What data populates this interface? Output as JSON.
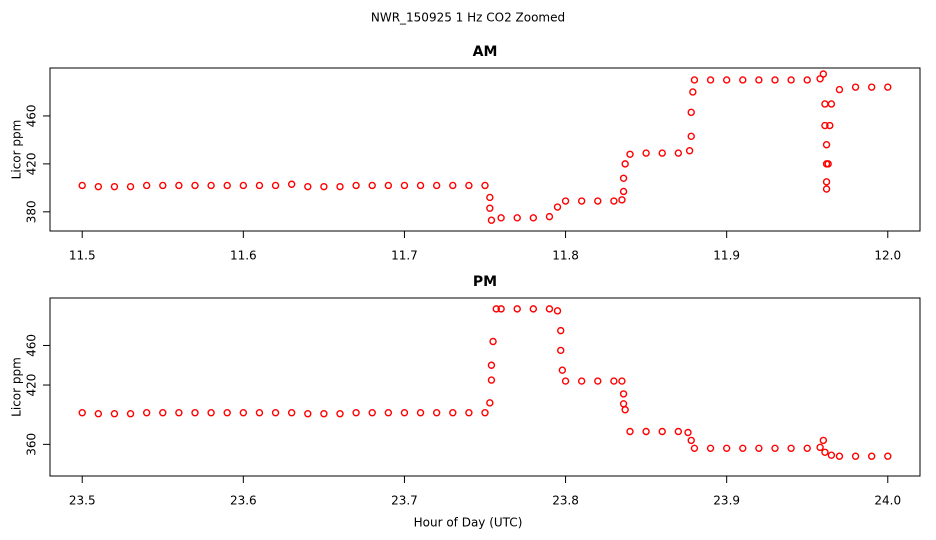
{
  "title": "NWR_150925  1 Hz CO2 Zoomed",
  "xlabel": "Hour of Day (UTC)",
  "chart_data": [
    {
      "type": "scatter",
      "title": "AM",
      "ylabel": "Licor ppm",
      "color": "#ff0000",
      "xlim": [
        11.48,
        12.02
      ],
      "ylim": [
        364,
        500
      ],
      "xticks": [
        11.5,
        11.6,
        11.7,
        11.8,
        11.9,
        {
          "value": 12,
          "label": "12.0"
        }
      ],
      "yticks": [
        380,
        420,
        460
      ],
      "x": [
        11.5,
        11.51,
        11.52,
        11.53,
        11.54,
        11.55,
        11.56,
        11.57,
        11.58,
        11.59,
        11.6,
        11.61,
        11.62,
        11.63,
        11.64,
        11.65,
        11.66,
        11.67,
        11.68,
        11.69,
        11.7,
        11.71,
        11.72,
        11.73,
        11.74,
        11.75,
        11.753,
        11.753,
        11.754,
        11.76,
        11.77,
        11.78,
        11.79,
        11.795,
        11.8,
        11.81,
        11.82,
        11.83,
        11.835,
        11.836,
        11.836,
        11.837,
        11.84,
        11.85,
        11.86,
        11.87,
        11.877,
        11.878,
        11.878,
        11.879,
        11.88,
        11.89,
        11.9,
        11.91,
        11.92,
        11.93,
        11.94,
        11.95,
        11.958,
        11.96,
        11.961,
        11.961,
        11.962,
        11.962,
        11.962,
        11.962,
        11.963,
        11.964,
        11.965,
        11.97,
        11.98,
        11.99,
        12.0
      ],
      "values": [
        402,
        401,
        401,
        401,
        402,
        402,
        402,
        402,
        402,
        402,
        402,
        402,
        402,
        403,
        401,
        401,
        401,
        402,
        402,
        402,
        402,
        402,
        402,
        402,
        402,
        402,
        392,
        383,
        373,
        375,
        375,
        375,
        376,
        384,
        389,
        389,
        389,
        389,
        390,
        397,
        408,
        420,
        428,
        429,
        429,
        429,
        431,
        443,
        463,
        480,
        490,
        490,
        490,
        490,
        490,
        490,
        490,
        490,
        491,
        495,
        470,
        452,
        436,
        420,
        405,
        399,
        420,
        452,
        470,
        482,
        484,
        484,
        484
      ]
    },
    {
      "type": "scatter",
      "title": "PM",
      "ylabel": "Licor ppm",
      "color": "#ff0000",
      "xlim": [
        23.48,
        24.02
      ],
      "ylim": [
        328,
        508
      ],
      "xticks": [
        23.5,
        23.6,
        23.7,
        23.8,
        23.9,
        {
          "value": 24,
          "label": "24.0"
        }
      ],
      "yticks": [
        360,
        420,
        460
      ],
      "x": [
        23.5,
        23.51,
        23.52,
        23.53,
        23.54,
        23.55,
        23.56,
        23.57,
        23.58,
        23.59,
        23.6,
        23.61,
        23.62,
        23.63,
        23.64,
        23.65,
        23.66,
        23.67,
        23.68,
        23.69,
        23.7,
        23.71,
        23.72,
        23.73,
        23.74,
        23.75,
        23.753,
        23.754,
        23.754,
        23.755,
        23.757,
        23.76,
        23.77,
        23.78,
        23.79,
        23.795,
        23.797,
        23.797,
        23.798,
        23.8,
        23.81,
        23.82,
        23.83,
        23.835,
        23.836,
        23.836,
        23.837,
        23.84,
        23.85,
        23.86,
        23.87,
        23.876,
        23.878,
        23.88,
        23.89,
        23.9,
        23.91,
        23.92,
        23.93,
        23.94,
        23.95,
        23.958,
        23.96,
        23.961,
        23.965,
        23.97,
        23.98,
        23.99,
        24.0
      ],
      "values": [
        392,
        391,
        391,
        391,
        392,
        392,
        392,
        392,
        392,
        392,
        392,
        392,
        392,
        392,
        391,
        391,
        391,
        392,
        392,
        392,
        392,
        392,
        392,
        392,
        392,
        392,
        402,
        425,
        440,
        464,
        497,
        497,
        497,
        497,
        497,
        495,
        475,
        455,
        435,
        424,
        424,
        424,
        424,
        424,
        411,
        401,
        395,
        373,
        373,
        373,
        373,
        372,
        364,
        356,
        356,
        356,
        356,
        356,
        356,
        356,
        356,
        357,
        364,
        352,
        349,
        348,
        348,
        348,
        348
      ]
    }
  ]
}
